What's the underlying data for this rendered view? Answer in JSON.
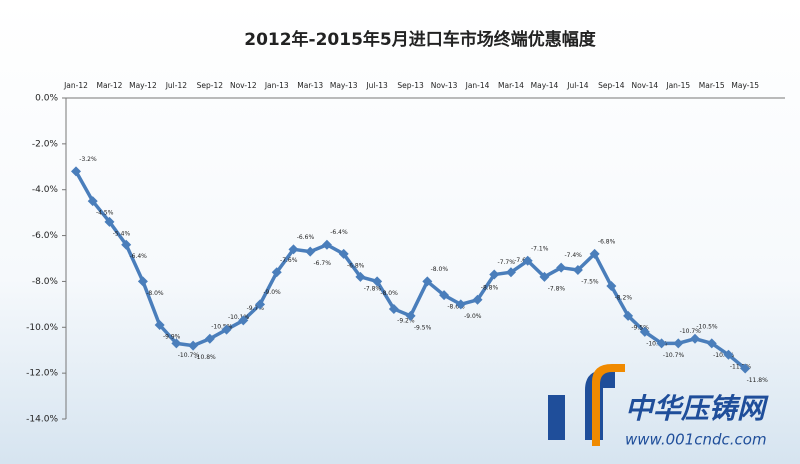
{
  "chart_data": {
    "type": "line",
    "title": "2012年-2015年5月进口车市场终端优惠幅度",
    "categories": [
      "Jan-12",
      null,
      "Mar-12",
      null,
      "May-12",
      null,
      "Jul-12",
      null,
      "Sep-12",
      null,
      "Nov-12",
      null,
      "Jan-13",
      null,
      "Mar-13",
      null,
      "May-13",
      null,
      "Jul-13",
      null,
      "Sep-13",
      null,
      "Nov-13",
      null,
      "Jan-14",
      null,
      "Mar-14",
      null,
      "May-14",
      null,
      "Jul-14",
      null,
      "Sep-14",
      null,
      "Nov-14",
      null,
      "Jan-15",
      null,
      "Mar-15",
      null,
      "May-15"
    ],
    "series": [
      {
        "name": "优惠幅度",
        "color": "#4a7ebb",
        "values": [
          -3.2,
          -4.5,
          -5.4,
          -6.4,
          -8.0,
          -9.9,
          -10.7,
          -10.8,
          -10.5,
          -10.1,
          -9.7,
          -9.0,
          -7.6,
          -6.6,
          -6.7,
          -6.4,
          -6.8,
          -7.8,
          -8.0,
          -9.2,
          -9.5,
          -8.0,
          -8.6,
          -9.0,
          -8.8,
          -7.7,
          -7.6,
          -7.1,
          -7.8,
          -7.4,
          -7.5,
          -6.8,
          -8.2,
          -9.5,
          -10.2,
          -10.7,
          -10.7,
          -10.5,
          -10.7,
          -11.2,
          -11.8
        ],
        "value_labels": [
          "-3.2%",
          "-4.5%",
          "-5.4%",
          "-6.4%",
          "-8.0%",
          "-9.9%",
          "-10.7%",
          "-10.8%",
          "-10.5%",
          "-10.1%",
          "-9.7%",
          "-9.0%",
          "-7.6%",
          "-6.6%",
          "-6.7%",
          "-6.4%",
          "-6.8%",
          "-7.8%",
          "-8.0%",
          "-9.2%",
          "-9.5%",
          "-8.0%",
          "-8.6%",
          "-9.0%",
          "-8.8%",
          "-7.7%",
          "-7.6%",
          "-7.1%",
          "-7.8%",
          "-7.4%",
          "-7.5%",
          "-6.8%",
          "-8.2%",
          "-9.5%",
          "-10.2%",
          "-10.7%",
          "-10.7%",
          "-10.5%",
          "-10.7%",
          "-11.2%",
          "-11.8%"
        ]
      }
    ],
    "ylim": [
      -14,
      0
    ],
    "yticks": [
      {
        "value": 0,
        "label": "0.0%"
      },
      {
        "value": -2,
        "label": "-2.0%"
      },
      {
        "value": -4,
        "label": "-4.0%"
      },
      {
        "value": -6,
        "label": "-6.0%"
      },
      {
        "value": -8,
        "label": "-8.0%"
      },
      {
        "value": -10,
        "label": "-10.0%"
      },
      {
        "value": -12,
        "label": "-12.0%"
      },
      {
        "value": -14,
        "label": "-14.0%"
      }
    ],
    "grid": false
  },
  "watermark": {
    "name": "中华压铸网",
    "url": "www.001cndc.com"
  }
}
